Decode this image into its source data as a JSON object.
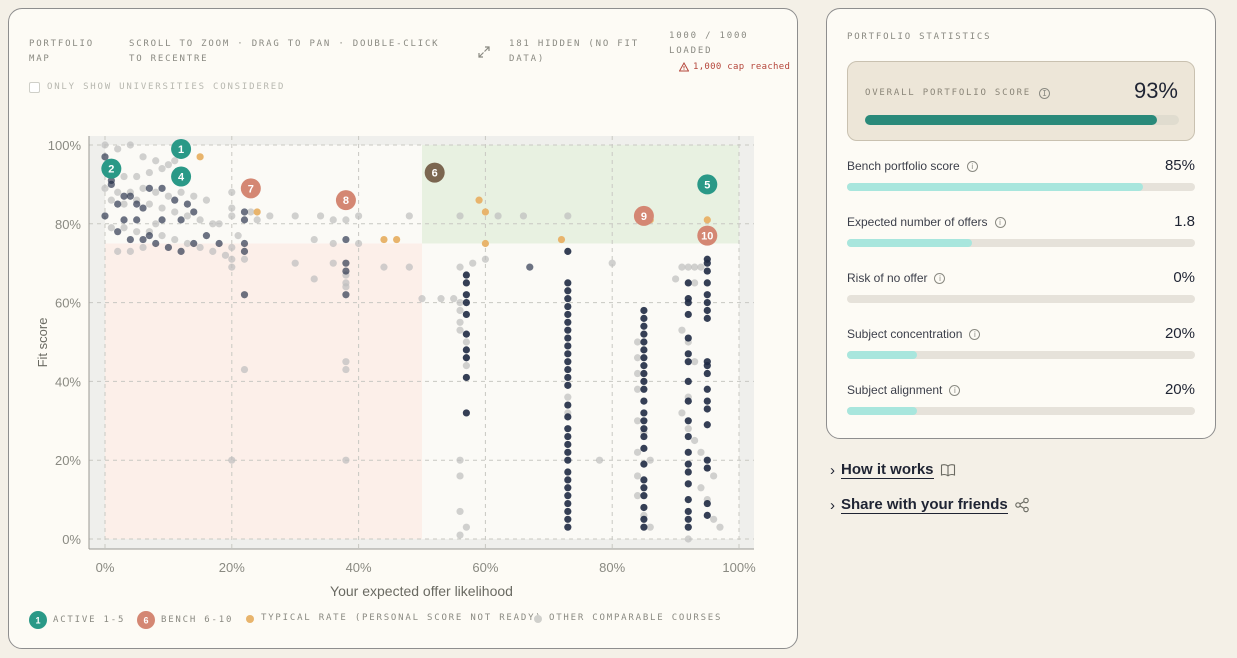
{
  "map": {
    "title": "PORTFOLIO MAP",
    "hint": "SCROLL TO ZOOM · DRAG TO PAN · DOUBLE-CLICK TO RECENTRE",
    "hidden_note": "181 HIDDEN (NO FIT DATA)",
    "loaded_note": "1000 / 1000 LOADED",
    "cap_warning": "1,000 cap reached",
    "filter_label": "ONLY SHOW UNIVERSITIES CONSIDERED",
    "filter_checked": false
  },
  "chart_data": {
    "type": "scatter",
    "xlabel": "Your expected offer likelihood",
    "ylabel": "Fit score",
    "xlim": [
      0,
      100
    ],
    "ylim": [
      0,
      100
    ],
    "x_ticks": [
      "0%",
      "20%",
      "40%",
      "60%",
      "80%",
      "100%"
    ],
    "y_ticks": [
      "0%",
      "20%",
      "40%",
      "60%",
      "80%",
      "100%"
    ],
    "grid": true,
    "regions": [
      {
        "x": [
          50,
          100
        ],
        "y": [
          75,
          100
        ],
        "color": "#e8f1e1"
      },
      {
        "x": [
          0,
          50
        ],
        "y": [
          0,
          75
        ],
        "color": "#fcefe9"
      }
    ],
    "active": [
      {
        "label": "1",
        "x": 12,
        "y": 99
      },
      {
        "label": "2",
        "x": 1,
        "y": 94
      },
      {
        "label": "4",
        "x": 12,
        "y": 92
      },
      {
        "label": "5",
        "x": 95,
        "y": 90
      }
    ],
    "bench": [
      {
        "label": "6",
        "x": 52,
        "y": 93,
        "color": "#7b6650"
      },
      {
        "label": "7",
        "x": 23,
        "y": 89,
        "color": "#d48773"
      },
      {
        "label": "8",
        "x": 38,
        "y": 86,
        "color": "#d48773"
      },
      {
        "label": "9",
        "x": 85,
        "y": 82,
        "color": "#d48773"
      },
      {
        "label": "10",
        "x": 95,
        "y": 77,
        "color": "#d48773"
      }
    ],
    "typical": [
      [
        15,
        97
      ],
      [
        24,
        83
      ],
      [
        44,
        76
      ],
      [
        46,
        76
      ],
      [
        59,
        86
      ],
      [
        60,
        83
      ],
      [
        60,
        75
      ],
      [
        72,
        76
      ],
      [
        86,
        81
      ],
      [
        95,
        81
      ],
      [
        95,
        76
      ]
    ],
    "dark_columns": [
      {
        "x": 57,
        "y": [
          67,
          65,
          62,
          60,
          57,
          52,
          48,
          46,
          41,
          32
        ]
      },
      {
        "x": 73,
        "y": [
          73,
          65,
          63,
          61,
          59,
          57,
          55,
          53,
          51,
          49,
          47,
          45,
          43,
          41,
          39,
          34,
          31,
          28,
          26,
          24,
          22,
          20,
          17,
          15,
          13,
          11,
          9,
          7,
          5,
          3
        ]
      },
      {
        "x": 85,
        "y": [
          58,
          56,
          54,
          52,
          50,
          48,
          46,
          44,
          42,
          40,
          38,
          35,
          32,
          30,
          28,
          26,
          23,
          19,
          15,
          13,
          11,
          8,
          5,
          3
        ]
      },
      {
        "x": 92,
        "y": [
          65,
          61,
          60,
          57,
          51,
          47,
          45,
          40,
          35,
          30,
          26,
          22,
          19,
          17,
          14,
          10,
          7,
          5,
          3
        ]
      },
      {
        "x": 95,
        "y": [
          71,
          70,
          68,
          65,
          62,
          60,
          58,
          56,
          45,
          44,
          42,
          38,
          35,
          33,
          29,
          20,
          18,
          9,
          6
        ]
      }
    ],
    "dark_cluster": [
      [
        0,
        97
      ],
      [
        1,
        91
      ],
      [
        1,
        90
      ],
      [
        3,
        87
      ],
      [
        4,
        87
      ],
      [
        2,
        85
      ],
      [
        5,
        85
      ],
      [
        6,
        84
      ],
      [
        3,
        81
      ],
      [
        5,
        81
      ],
      [
        0,
        82
      ],
      [
        2,
        78
      ],
      [
        4,
        76
      ],
      [
        6,
        76
      ],
      [
        7,
        77
      ],
      [
        8,
        75
      ],
      [
        10,
        74
      ],
      [
        12,
        73
      ],
      [
        14,
        75
      ],
      [
        16,
        77
      ],
      [
        18,
        75
      ],
      [
        12,
        81
      ],
      [
        14,
        83
      ],
      [
        9,
        81
      ],
      [
        11,
        86
      ],
      [
        13,
        85
      ],
      [
        7,
        89
      ],
      [
        9,
        89
      ],
      [
        22,
        75
      ],
      [
        22,
        73
      ],
      [
        22,
        81
      ],
      [
        22,
        83
      ],
      [
        38,
        76
      ],
      [
        38,
        70
      ],
      [
        38,
        68
      ],
      [
        38,
        62
      ],
      [
        22,
        62
      ],
      [
        67,
        69
      ]
    ],
    "other_courses": [
      [
        0,
        100
      ],
      [
        2,
        99
      ],
      [
        4,
        100
      ],
      [
        6,
        97
      ],
      [
        8,
        96
      ],
      [
        10,
        95
      ],
      [
        1,
        93
      ],
      [
        3,
        92
      ],
      [
        5,
        92
      ],
      [
        7,
        93
      ],
      [
        9,
        94
      ],
      [
        11,
        96
      ],
      [
        0,
        89
      ],
      [
        2,
        88
      ],
      [
        4,
        88
      ],
      [
        6,
        89
      ],
      [
        8,
        88
      ],
      [
        10,
        87
      ],
      [
        12,
        88
      ],
      [
        14,
        87
      ],
      [
        16,
        86
      ],
      [
        1,
        86
      ],
      [
        3,
        85
      ],
      [
        5,
        86
      ],
      [
        7,
        85
      ],
      [
        9,
        84
      ],
      [
        11,
        83
      ],
      [
        13,
        82
      ],
      [
        15,
        81
      ],
      [
        17,
        80
      ],
      [
        1,
        79
      ],
      [
        3,
        79
      ],
      [
        5,
        78
      ],
      [
        7,
        78
      ],
      [
        9,
        77
      ],
      [
        11,
        76
      ],
      [
        13,
        75
      ],
      [
        15,
        74
      ],
      [
        17,
        73
      ],
      [
        19,
        72
      ],
      [
        20,
        74
      ],
      [
        21,
        77
      ],
      [
        18,
        80
      ],
      [
        20,
        82
      ],
      [
        20,
        84
      ],
      [
        20,
        88
      ],
      [
        23,
        83
      ],
      [
        24,
        81
      ],
      [
        26,
        82
      ],
      [
        30,
        82
      ],
      [
        34,
        82
      ],
      [
        36,
        81
      ],
      [
        38,
        81
      ],
      [
        40,
        82
      ],
      [
        48,
        82
      ],
      [
        56,
        82
      ],
      [
        62,
        82
      ],
      [
        66,
        82
      ],
      [
        73,
        82
      ],
      [
        8,
        80
      ],
      [
        6,
        74
      ],
      [
        2,
        73
      ],
      [
        4,
        73
      ],
      [
        20,
        69
      ],
      [
        22,
        71
      ],
      [
        30,
        70
      ],
      [
        33,
        66
      ],
      [
        36,
        70
      ],
      [
        38,
        67
      ],
      [
        38,
        65
      ],
      [
        38,
        64
      ],
      [
        40,
        75
      ],
      [
        44,
        69
      ],
      [
        48,
        69
      ],
      [
        50,
        61
      ],
      [
        53,
        61
      ],
      [
        55,
        61
      ],
      [
        56,
        60
      ],
      [
        56,
        58
      ],
      [
        56,
        55
      ],
      [
        56,
        53
      ],
      [
        57,
        50
      ],
      [
        57,
        46
      ],
      [
        57,
        44
      ],
      [
        56,
        69
      ],
      [
        58,
        70
      ],
      [
        60,
        71
      ],
      [
        80,
        70
      ],
      [
        92,
        69
      ],
      [
        93,
        69
      ],
      [
        94,
        69
      ],
      [
        91,
        69
      ],
      [
        90,
        66
      ],
      [
        93,
        65
      ],
      [
        91,
        53
      ],
      [
        92,
        50
      ],
      [
        93,
        45
      ],
      [
        92,
        36
      ],
      [
        91,
        32
      ],
      [
        92,
        28
      ],
      [
        93,
        25
      ],
      [
        94,
        22
      ],
      [
        95,
        18
      ],
      [
        96,
        16
      ],
      [
        94,
        13
      ],
      [
        95,
        10
      ],
      [
        96,
        5
      ],
      [
        97,
        3
      ],
      [
        92,
        0
      ],
      [
        86,
        20
      ],
      [
        78,
        20
      ],
      [
        73,
        36
      ],
      [
        73,
        32
      ],
      [
        84,
        50
      ],
      [
        84,
        46
      ],
      [
        84,
        42
      ],
      [
        84,
        38
      ],
      [
        84,
        30
      ],
      [
        85,
        27
      ],
      [
        84,
        22
      ],
      [
        84,
        16
      ],
      [
        84,
        11
      ],
      [
        85,
        6
      ],
      [
        86,
        3
      ],
      [
        56,
        20
      ],
      [
        56,
        16
      ],
      [
        56,
        7
      ],
      [
        57,
        3
      ],
      [
        56,
        1
      ],
      [
        38,
        45
      ],
      [
        38,
        43
      ],
      [
        38,
        20
      ],
      [
        22,
        43
      ],
      [
        20,
        20
      ],
      [
        20,
        71
      ],
      [
        33,
        76
      ],
      [
        36,
        75
      ]
    ]
  },
  "legend": {
    "active_badge": "1",
    "active_label": "ACTIVE 1-5",
    "bench_badge": "6",
    "bench_label": "BENCH 6-10",
    "typical_label": "TYPICAL RATE (PERSONAL SCORE NOT READY)",
    "other_label": "OTHER COMPARABLE COURSES"
  },
  "stats": {
    "title": "PORTFOLIO STATISTICS",
    "overall_label": "OVERALL PORTFOLIO SCORE",
    "overall_value": "93%",
    "overall_fraction": 0.93,
    "rows": [
      {
        "label": "Bench portfolio score",
        "value": "85%",
        "fraction": 0.85
      },
      {
        "label": "Expected number of offers",
        "value": "1.8",
        "fraction": 0.36
      },
      {
        "label": "Risk of no offer",
        "value": "0%",
        "fraction": 0.0
      },
      {
        "label": "Subject concentration",
        "value": "20%",
        "fraction": 0.2
      },
      {
        "label": "Subject alignment",
        "value": "20%",
        "fraction": 0.2
      }
    ]
  },
  "links": {
    "how_it_works": "How it works",
    "share": "Share with your friends"
  },
  "colors": {
    "active": "#2a9987",
    "bench": "#d48773",
    "bench_dark": "#7b6650",
    "typical": "#e8b46c",
    "other": "#bdbdbd",
    "dark_points": "#1f2a44",
    "overall_bar": "#2a8a7a",
    "stat_bar": "#a8e6dd"
  }
}
